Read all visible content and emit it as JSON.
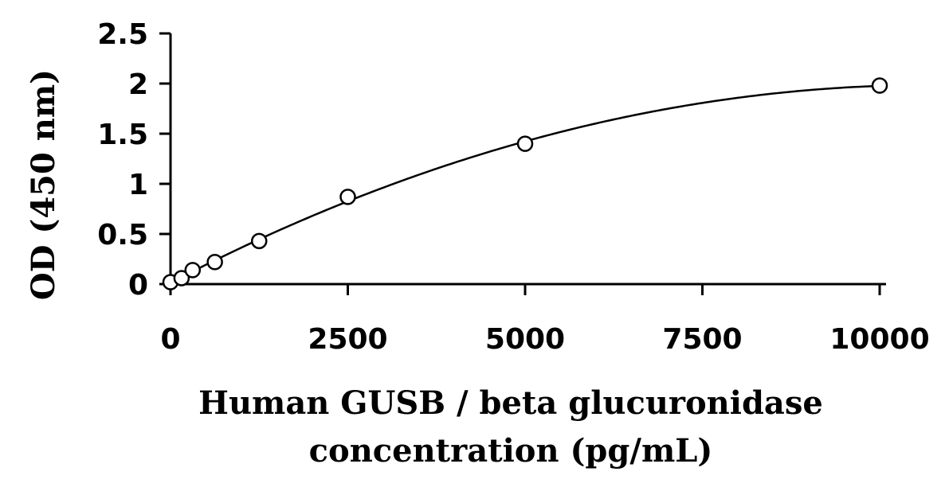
{
  "chart_data": {
    "type": "scatter",
    "title": "",
    "xlabel_lines": [
      "Human GUSB / beta glucuronidase",
      "concentration (pg/mL)"
    ],
    "ylabel": "OD (450 nm)",
    "xlim": [
      0,
      10000
    ],
    "ylim": [
      0,
      2.5
    ],
    "x_ticks": [
      0,
      2500,
      5000,
      7500,
      10000
    ],
    "x_tick_labels": [
      "0",
      "2500",
      "5000",
      "7500",
      "10000"
    ],
    "y_ticks": [
      0,
      0.5,
      1,
      1.5,
      2,
      2.5
    ],
    "y_tick_labels": [
      "0",
      "0.5",
      "1",
      "1.5",
      "2",
      "2.5"
    ],
    "grid": false,
    "legend": "none",
    "series": [
      {
        "x": [
          0,
          156,
          312,
          625,
          1250,
          2500,
          5000,
          10000
        ],
        "y": [
          0.02,
          0.06,
          0.14,
          0.22,
          0.43,
          0.87,
          1.4,
          1.98
        ],
        "marker": "open-circle",
        "trendline": "polynomial"
      }
    ],
    "colors": {
      "axis": "#000000",
      "marker_stroke": "#000000",
      "marker_fill": "#ffffff",
      "curve": "#000000"
    }
  }
}
